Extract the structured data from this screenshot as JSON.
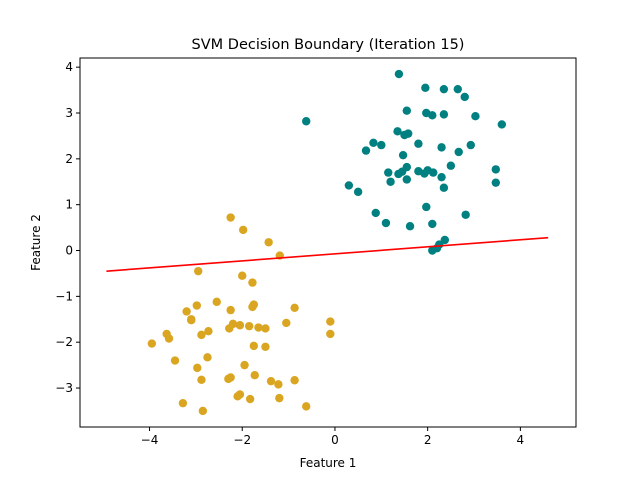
{
  "chart_data": {
    "type": "scatter",
    "title": "SVM Decision Boundary (Iteration 15)",
    "xlabel": "Feature 1",
    "ylabel": "Feature 2",
    "xlim": [
      -5.5,
      5.2
    ],
    "ylim": [
      -3.85,
      4.2
    ],
    "xticks": [
      -4,
      -2,
      0,
      2,
      4
    ],
    "xtick_labels": [
      "−4",
      "−2",
      "0",
      "2",
      "4"
    ],
    "yticks": [
      -3,
      -2,
      -1,
      0,
      1,
      2,
      3,
      4
    ],
    "ytick_labels": [
      "−3",
      "−2",
      "−1",
      "0",
      "1",
      "2",
      "3",
      "4"
    ],
    "grid": false,
    "series": [
      {
        "kind": "scatter",
        "color": "#DAA520",
        "points": [
          [
            -2.25,
            0.72
          ],
          [
            -1.98,
            0.45
          ],
          [
            -1.43,
            0.18
          ],
          [
            -1.19,
            -0.11
          ],
          [
            -2.95,
            -0.45
          ],
          [
            -2.0,
            -0.55
          ],
          [
            -1.78,
            -0.7
          ],
          [
            -2.55,
            -1.12
          ],
          [
            -2.98,
            -1.2
          ],
          [
            -1.75,
            -1.18
          ],
          [
            -1.78,
            -1.23
          ],
          [
            -0.87,
            -1.25
          ],
          [
            -3.2,
            -1.33
          ],
          [
            -2.25,
            -1.3
          ],
          [
            -3.1,
            -1.5
          ],
          [
            -3.1,
            -1.52
          ],
          [
            -1.05,
            -1.58
          ],
          [
            -0.1,
            -1.55
          ],
          [
            -2.2,
            -1.6
          ],
          [
            -2.05,
            -1.63
          ],
          [
            -2.28,
            -1.7
          ],
          [
            -1.85,
            -1.65
          ],
          [
            -1.65,
            -1.68
          ],
          [
            -1.5,
            -1.7
          ],
          [
            -2.73,
            -1.76
          ],
          [
            -2.88,
            -1.84
          ],
          [
            -3.63,
            -1.82
          ],
          [
            -0.1,
            -1.82
          ],
          [
            -3.58,
            -1.92
          ],
          [
            -3.95,
            -2.03
          ],
          [
            -1.75,
            -2.08
          ],
          [
            -1.5,
            -2.1
          ],
          [
            -2.75,
            -2.33
          ],
          [
            -3.45,
            -2.4
          ],
          [
            -1.95,
            -2.5
          ],
          [
            -2.97,
            -2.56
          ],
          [
            -1.73,
            -2.72
          ],
          [
            -2.25,
            -2.77
          ],
          [
            -2.3,
            -2.8
          ],
          [
            -2.88,
            -2.82
          ],
          [
            -1.38,
            -2.85
          ],
          [
            -1.22,
            -2.92
          ],
          [
            -0.87,
            -2.83
          ],
          [
            -2.05,
            -3.14
          ],
          [
            -2.1,
            -3.18
          ],
          [
            -1.83,
            -3.24
          ],
          [
            -1.2,
            -3.22
          ],
          [
            -3.28,
            -3.33
          ],
          [
            -0.62,
            -3.4
          ],
          [
            -2.85,
            -3.5
          ]
        ]
      },
      {
        "kind": "scatter",
        "color": "#008080",
        "points": [
          [
            1.38,
            3.85
          ],
          [
            1.95,
            3.55
          ],
          [
            2.35,
            3.52
          ],
          [
            2.65,
            3.52
          ],
          [
            2.8,
            3.35
          ],
          [
            -0.62,
            2.82
          ],
          [
            1.55,
            3.05
          ],
          [
            1.97,
            3.0
          ],
          [
            2.1,
            2.95
          ],
          [
            2.35,
            2.97
          ],
          [
            3.03,
            2.93
          ],
          [
            3.6,
            2.75
          ],
          [
            1.35,
            2.6
          ],
          [
            1.5,
            2.52
          ],
          [
            1.58,
            2.55
          ],
          [
            0.83,
            2.35
          ],
          [
            1.0,
            2.3
          ],
          [
            1.8,
            2.33
          ],
          [
            2.3,
            2.25
          ],
          [
            2.93,
            2.3
          ],
          [
            0.67,
            2.18
          ],
          [
            1.47,
            2.08
          ],
          [
            2.67,
            2.15
          ],
          [
            2.5,
            1.85
          ],
          [
            1.55,
            1.82
          ],
          [
            1.15,
            1.7
          ],
          [
            1.37,
            1.67
          ],
          [
            1.45,
            1.72
          ],
          [
            1.8,
            1.73
          ],
          [
            2.0,
            1.75
          ],
          [
            1.93,
            1.68
          ],
          [
            2.12,
            1.7
          ],
          [
            2.3,
            1.6
          ],
          [
            3.47,
            1.77
          ],
          [
            1.2,
            1.5
          ],
          [
            1.55,
            1.55
          ],
          [
            2.35,
            1.37
          ],
          [
            0.3,
            1.42
          ],
          [
            0.5,
            1.28
          ],
          [
            3.47,
            1.48
          ],
          [
            1.97,
            0.95
          ],
          [
            0.88,
            0.82
          ],
          [
            1.1,
            0.6
          ],
          [
            1.62,
            0.53
          ],
          [
            2.1,
            0.58
          ],
          [
            2.82,
            0.78
          ],
          [
            2.37,
            0.23
          ],
          [
            2.25,
            0.13
          ],
          [
            2.1,
            0.0
          ],
          [
            2.2,
            0.05
          ]
        ]
      },
      {
        "kind": "line",
        "color": "#FF0000",
        "x": [
          -4.93,
          4.6
        ],
        "y": [
          -0.45,
          0.28
        ]
      }
    ]
  }
}
